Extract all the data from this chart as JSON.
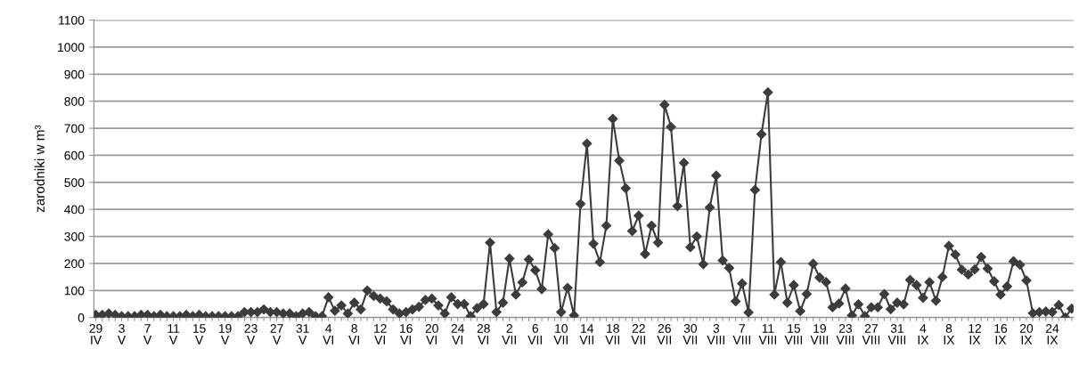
{
  "chart_data": {
    "type": "line",
    "ylabel": "zarodniki w m³",
    "categories": [
      "29\nIV",
      null,
      null,
      null,
      "3\nV",
      null,
      null,
      null,
      "7\nV",
      null,
      null,
      null,
      "11\nV",
      null,
      null,
      null,
      "15\nV",
      null,
      null,
      null,
      "19\nV",
      null,
      null,
      null,
      "23\nV",
      null,
      null,
      null,
      "27\nV",
      null,
      null,
      null,
      "31\nV",
      null,
      null,
      null,
      "4\nVI",
      null,
      null,
      null,
      "8\nVI",
      null,
      null,
      null,
      "12\nVI",
      null,
      null,
      null,
      "16\nVI",
      null,
      null,
      null,
      "20\nVI",
      null,
      null,
      null,
      "24\nVI",
      null,
      null,
      null,
      "28\nVI",
      null,
      null,
      null,
      "2\nVII",
      null,
      null,
      null,
      "6\nVII",
      null,
      null,
      null,
      "10\nVII",
      null,
      null,
      null,
      "14\nVII",
      null,
      null,
      null,
      "18\nVII",
      null,
      null,
      null,
      "22\nVII",
      null,
      null,
      null,
      "26\nVII",
      null,
      null,
      null,
      "30\nVII",
      null,
      null,
      null,
      "3\nVIII",
      null,
      null,
      null,
      "7\nVIII",
      null,
      null,
      null,
      "11\nVIII",
      null,
      null,
      null,
      "15\nVIII",
      null,
      null,
      null,
      "19\nVIII",
      null,
      null,
      null,
      "23\nVIII",
      null,
      null,
      null,
      "27\nVIII",
      null,
      null,
      null,
      "31\nVIII",
      null,
      null,
      null,
      "4\nIX",
      null,
      null,
      null,
      "8\nIX",
      null,
      null,
      null,
      "12\nIX",
      null,
      null,
      null,
      "16\nIX",
      null,
      null,
      null,
      "20\nIX",
      null,
      null,
      null,
      "24\nIX",
      null,
      null,
      null
    ],
    "series": [
      {
        "color": "#3c3c3c",
        "values": [
          10,
          10,
          15,
          10,
          5,
          5,
          5,
          10,
          10,
          5,
          10,
          5,
          5,
          5,
          10,
          5,
          10,
          5,
          5,
          5,
          5,
          5,
          5,
          20,
          20,
          20,
          30,
          20,
          20,
          15,
          15,
          5,
          15,
          20,
          5,
          5,
          75,
          25,
          45,
          15,
          55,
          30,
          100,
          80,
          70,
          60,
          30,
          15,
          20,
          30,
          40,
          65,
          70,
          45,
          15,
          75,
          50,
          50,
          5,
          35,
          50,
          277,
          20,
          55,
          218,
          85,
          130,
          215,
          175,
          105,
          308,
          257,
          20,
          110,
          8,
          420,
          643,
          273,
          205,
          340,
          735,
          580,
          478,
          320,
          377,
          235,
          340,
          277,
          787,
          705,
          412,
          572,
          260,
          300,
          197,
          407,
          525,
          211,
          183,
          60,
          126,
          19,
          472,
          678,
          833,
          85,
          205,
          55,
          120,
          24,
          87,
          199,
          148,
          131,
          38,
          52,
          107,
          8,
          49,
          5,
          38,
          38,
          87,
          31,
          55,
          49,
          139,
          120,
          73,
          131,
          62,
          150,
          265,
          233,
          177,
          159,
          178,
          224,
          181,
          134,
          85,
          115,
          208,
          195,
          137,
          16,
          20,
          22,
          20,
          46,
          0,
          33
        ]
      }
    ],
    "ylim": [
      0,
      1100
    ],
    "yticks": [
      0,
      100,
      200,
      300,
      400,
      500,
      600,
      700,
      800,
      900,
      1000,
      1100
    ],
    "grid": "y",
    "marker": "diamond",
    "line_style": "solid",
    "legend": false
  }
}
